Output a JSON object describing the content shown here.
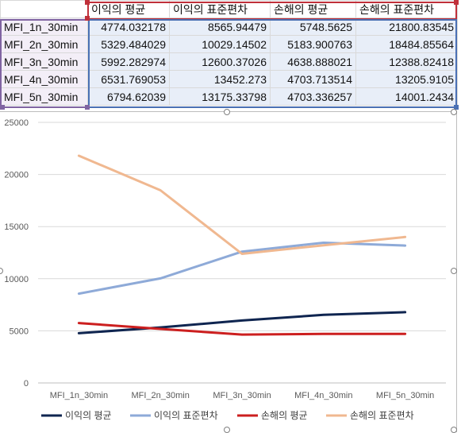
{
  "table": {
    "headers": [
      "이익의 평균",
      "이익의 표준편차",
      "손해의 평균",
      "손해의 표준편차"
    ],
    "rows": [
      {
        "label": "MFI_1n_30min",
        "values": [
          "4774.032178",
          "8565.94479",
          "5748.5625",
          "21800.83545"
        ]
      },
      {
        "label": "MFI_2n_30min",
        "values": [
          "5329.484029",
          "10029.14502",
          "5183.900763",
          "18484.85564"
        ]
      },
      {
        "label": "MFI_3n_30min",
        "values": [
          "5992.282974",
          "12600.37026",
          "4638.888021",
          "12388.82418"
        ]
      },
      {
        "label": "MFI_4n_30min",
        "values": [
          "6531.769053",
          "13452.273",
          "4703.713514",
          "13205.9105"
        ]
      },
      {
        "label": "MFI_5n_30min",
        "values": [
          "6794.62039",
          "13175.33798",
          "4703.336257",
          "14001.2434"
        ]
      }
    ]
  },
  "chart_data": {
    "type": "line",
    "categories": [
      "MFI_1n_30min",
      "MFI_2n_30min",
      "MFI_3n_30min",
      "MFI_4n_30min",
      "MFI_5n_30min"
    ],
    "ylim": [
      0,
      25000
    ],
    "yticks": [
      "0",
      "5000",
      "10000",
      "15000",
      "20000",
      "25000"
    ],
    "grid": true,
    "legend": "bottom",
    "series": [
      {
        "name": "이익의 평균",
        "color": "#0f2550",
        "values": [
          4774.03,
          5329.48,
          5992.28,
          6531.77,
          6794.62
        ]
      },
      {
        "name": "이익의 표준편차",
        "color": "#8eaad8",
        "values": [
          8565.94,
          10029.15,
          12600.37,
          13452.27,
          13175.34
        ]
      },
      {
        "name": "손해의 평균",
        "color": "#cc1f1f",
        "values": [
          5748.56,
          5183.9,
          4638.89,
          4703.71,
          4703.34
        ]
      },
      {
        "name": "손해의 표준편차",
        "color": "#f0b890",
        "values": [
          21800.84,
          18484.86,
          12388.82,
          13205.91,
          14001.24
        ]
      }
    ]
  }
}
